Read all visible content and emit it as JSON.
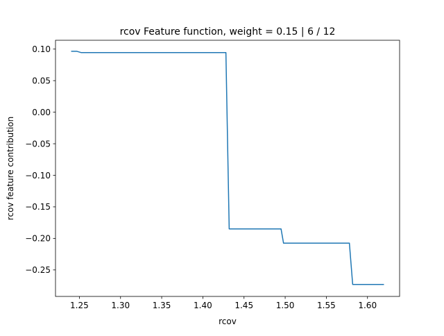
{
  "chart_data": {
    "type": "line",
    "title": "rcov Feature function, weight = 0.15 | 6 / 12",
    "xlabel": "rcov",
    "ylabel": "rcov feature contribution",
    "xlim": [
      1.221,
      1.639
    ],
    "ylim": [
      -0.292,
      0.114
    ],
    "x_ticks": [
      1.25,
      1.3,
      1.35,
      1.4,
      1.45,
      1.5,
      1.55,
      1.6
    ],
    "x_tick_labels": [
      "1.25",
      "1.30",
      "1.35",
      "1.40",
      "1.45",
      "1.50",
      "1.55",
      "1.60"
    ],
    "y_ticks": [
      0.1,
      0.05,
      0.0,
      -0.05,
      -0.1,
      -0.15,
      -0.2,
      -0.25
    ],
    "y_tick_labels": [
      "0.10",
      "0.05",
      "0.00",
      "−0.05",
      "−0.10",
      "−0.15",
      "−0.20",
      "−0.25"
    ],
    "grid": false,
    "line_color": "#1f77b4",
    "series": [
      {
        "x": [
          1.24,
          1.247,
          1.252,
          1.428,
          1.432,
          1.495,
          1.498,
          1.578,
          1.582,
          1.62
        ],
        "y": [
          0.0965,
          0.0965,
          0.0945,
          0.0945,
          -0.185,
          -0.185,
          -0.2075,
          -0.2075,
          -0.273,
          -0.273
        ]
      }
    ]
  }
}
